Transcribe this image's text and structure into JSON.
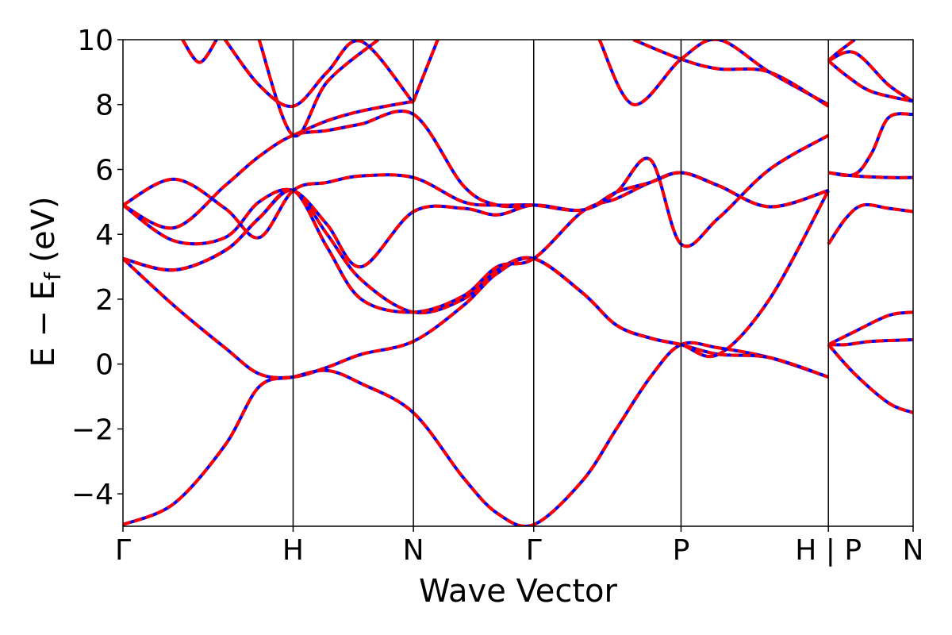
{
  "chart_data": {
    "type": "line",
    "title": "",
    "xlabel": "Wave Vector",
    "ylabel": "E − E",
    "ylabel_sub": "f",
    "ylabel_unit": " (eV)",
    "ylim": [
      -5,
      10
    ],
    "yticks": [
      -4,
      -2,
      0,
      2,
      4,
      6,
      8,
      10
    ],
    "ytick_labels": [
      "−4",
      "−2",
      "0",
      "2",
      "4",
      "6",
      "8",
      "10"
    ],
    "xlim": [
      0,
      4.644
    ],
    "high_symmetry_points": [
      {
        "label": "Γ",
        "x": 0.0
      },
      {
        "label": "H",
        "x": 1.0
      },
      {
        "label": "N",
        "x": 1.707
      },
      {
        "label": "Γ",
        "x": 2.414
      },
      {
        "label": "P",
        "x": 3.28
      },
      {
        "label": "H | P",
        "x": 4.146
      },
      {
        "label": "N",
        "x": 4.644
      }
    ],
    "series_colors": {
      "reference": "#0000ff",
      "overlay": "#ff0000"
    },
    "grid": false,
    "bands": [
      {
        "x": [
          0,
          0.3,
          0.6,
          0.8,
          1.0,
          1.2,
          1.4,
          1.707,
          2.0,
          2.2,
          2.414,
          2.7,
          2.9,
          3.1,
          3.28,
          3.5,
          3.8,
          4.146
        ],
        "y": [
          -4.95,
          -4.3,
          -2.5,
          -0.7,
          -0.4,
          -0.2,
          -0.6,
          -1.5,
          -3.5,
          -4.6,
          -4.95,
          -3.6,
          -2.0,
          -0.4,
          0.6,
          0.5,
          0.2,
          -0.4
        ]
      },
      {
        "x": [
          0,
          0.3,
          0.6,
          0.8,
          1.0,
          1.2,
          1.4,
          1.707,
          2.0,
          2.2,
          2.414,
          2.7,
          2.9,
          3.1,
          3.28,
          3.5,
          3.8,
          4.146
        ],
        "y": [
          3.25,
          1.8,
          0.5,
          -0.3,
          -0.4,
          -0.1,
          0.3,
          0.7,
          1.8,
          2.8,
          3.25,
          2.2,
          1.2,
          0.8,
          0.6,
          0.3,
          0.2,
          -0.4
        ]
      },
      {
        "x": [
          0,
          0.3,
          0.6,
          0.8,
          1.0,
          1.2,
          1.4,
          1.707,
          2.0,
          2.2,
          2.414,
          2.7,
          2.9,
          3.1,
          3.28,
          3.5,
          3.8,
          4.146
        ],
        "y": [
          3.25,
          2.9,
          3.5,
          4.5,
          5.35,
          4.0,
          2.6,
          1.6,
          2.0,
          2.9,
          3.25,
          2.2,
          1.2,
          0.8,
          0.6,
          0.3,
          2.0,
          5.35
        ]
      },
      {
        "x": [
          0,
          0.3,
          0.6,
          0.8,
          1.0,
          1.2,
          1.4,
          1.707,
          2.0,
          2.2,
          2.414,
          2.7,
          2.9,
          3.1,
          3.28,
          3.5,
          3.8,
          4.146
        ],
        "y": [
          3.25,
          2.9,
          3.5,
          4.5,
          5.35,
          3.6,
          2.0,
          1.6,
          2.1,
          3.0,
          3.25,
          4.7,
          5.1,
          5.6,
          5.9,
          5.5,
          4.85,
          5.35
        ]
      },
      {
        "x": [
          0,
          0.3,
          0.6,
          0.8,
          1.0,
          1.2,
          1.4,
          1.707,
          2.0,
          2.2,
          2.414,
          2.7,
          2.9,
          3.1,
          3.28,
          3.5,
          3.8,
          4.146
        ],
        "y": [
          4.9,
          3.8,
          3.9,
          5.0,
          5.35,
          4.3,
          3.0,
          4.7,
          4.8,
          4.6,
          4.9,
          4.75,
          5.3,
          6.3,
          3.7,
          4.5,
          6.0,
          7.05
        ]
      },
      {
        "x": [
          0,
          0.3,
          0.6,
          0.8,
          1.0,
          1.2,
          1.4,
          1.707,
          2.0,
          2.2,
          2.414,
          2.7,
          2.9,
          3.1,
          3.28,
          3.5,
          3.8,
          4.146
        ],
        "y": [
          4.9,
          5.7,
          4.8,
          3.9,
          5.35,
          5.6,
          5.8,
          5.75,
          5.0,
          4.9,
          4.9,
          4.75,
          5.3,
          5.6,
          5.9,
          5.5,
          4.85,
          5.35
        ]
      },
      {
        "x": [
          0,
          0.3,
          0.6,
          0.8,
          1.0,
          1.2,
          1.4,
          1.707,
          2.0,
          2.2,
          2.414
        ],
        "y": [
          4.9,
          4.2,
          5.5,
          6.4,
          7.05,
          7.2,
          7.4,
          7.7,
          5.5,
          4.9,
          4.9
        ]
      },
      {
        "x": [
          1.0,
          1.2,
          1.4,
          1.707
        ],
        "y": [
          7.05,
          7.5,
          7.8,
          8.1
        ]
      },
      {
        "x": [
          0.6,
          0.8,
          1.0,
          1.2,
          1.4,
          1.707
        ],
        "y": [
          10.0,
          8.6,
          7.95,
          9.0,
          9.95,
          8.05
        ]
      },
      {
        "x": [
          0.8,
          1.0,
          1.2,
          1.5
        ],
        "y": [
          10.0,
          7.05,
          8.7,
          10.0
        ]
      },
      {
        "x": [
          1.707,
          1.85
        ],
        "y": [
          8.1,
          10.0
        ]
      },
      {
        "x": [
          0.35,
          0.45,
          0.55
        ],
        "y": [
          10.0,
          9.3,
          10.0
        ]
      },
      {
        "x": [
          2.8,
          3.0,
          3.28,
          3.5,
          3.8,
          4.146
        ],
        "y": [
          10.0,
          8.0,
          9.4,
          10.0,
          9.0,
          8.0
        ]
      },
      {
        "x": [
          3.0,
          3.28,
          3.5,
          3.8,
          4.146
        ],
        "y": [
          10.0,
          9.4,
          9.1,
          9.0,
          7.95
        ]
      },
      {
        "x": [
          4.146,
          4.25,
          4.4,
          4.644
        ],
        "y": [
          0.6,
          0.6,
          0.7,
          0.75
        ]
      },
      {
        "x": [
          4.146,
          4.3,
          4.5,
          4.644
        ],
        "y": [
          0.6,
          -0.3,
          -1.2,
          -1.5
        ]
      },
      {
        "x": [
          4.146,
          4.3,
          4.5,
          4.644
        ],
        "y": [
          0.6,
          1.0,
          1.5,
          1.6
        ]
      },
      {
        "x": [
          4.146,
          4.25,
          4.35,
          4.5,
          4.644
        ],
        "y": [
          3.7,
          4.5,
          4.9,
          4.8,
          4.7
        ]
      },
      {
        "x": [
          4.146,
          4.3,
          4.4,
          4.5,
          4.644
        ],
        "y": [
          5.9,
          5.85,
          6.5,
          7.6,
          7.7
        ]
      },
      {
        "x": [
          4.146,
          4.3,
          4.5,
          4.644
        ],
        "y": [
          5.9,
          5.8,
          5.75,
          5.75
        ]
      },
      {
        "x": [
          4.146,
          4.3,
          4.5,
          4.644
        ],
        "y": [
          9.35,
          9.6,
          8.6,
          8.1
        ]
      },
      {
        "x": [
          4.146,
          4.25,
          4.4,
          4.644
        ],
        "y": [
          9.35,
          8.9,
          8.4,
          8.1
        ]
      },
      {
        "x": [
          4.146,
          4.2,
          4.3
        ],
        "y": [
          9.35,
          9.6,
          10.0
        ]
      }
    ]
  }
}
